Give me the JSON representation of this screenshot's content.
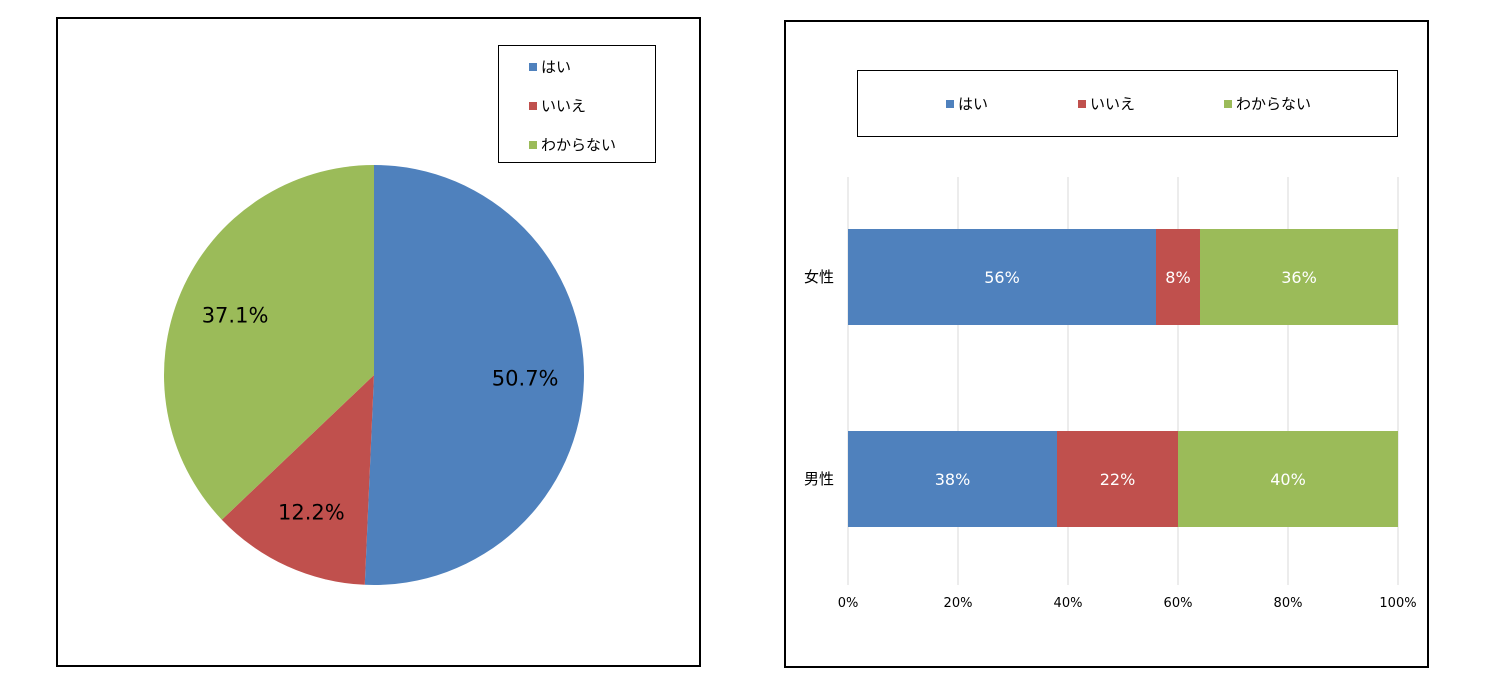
{
  "colors": {
    "yes": "#4F81BD",
    "no": "#C0504D",
    "unknown": "#9BBB59",
    "grid": "#d9d9d9"
  },
  "legend": [
    "はい",
    "いいえ",
    "わからない"
  ],
  "chart_data": [
    {
      "type": "pie",
      "categories": [
        "はい",
        "いいえ",
        "わからない"
      ],
      "values": [
        50.7,
        12.2,
        37.1
      ],
      "labels": [
        "50.7%",
        "12.2%",
        "37.1%"
      ],
      "legend_position": "top-right"
    },
    {
      "type": "bar",
      "orientation": "horizontal",
      "stacked": "percent",
      "categories": [
        "女性",
        "男性"
      ],
      "series": [
        {
          "name": "はい",
          "values": [
            56,
            38
          ],
          "labels": [
            "56%",
            "38%"
          ]
        },
        {
          "name": "いいえ",
          "values": [
            8,
            22
          ],
          "labels": [
            "8%",
            "22%"
          ]
        },
        {
          "name": "わからない",
          "values": [
            36,
            40
          ],
          "labels": [
            "36%",
            "40%"
          ]
        }
      ],
      "xlim": [
        0,
        100
      ],
      "xticks": [
        "0%",
        "20%",
        "40%",
        "60%",
        "80%",
        "100%"
      ],
      "grid": true,
      "legend_position": "top"
    }
  ]
}
